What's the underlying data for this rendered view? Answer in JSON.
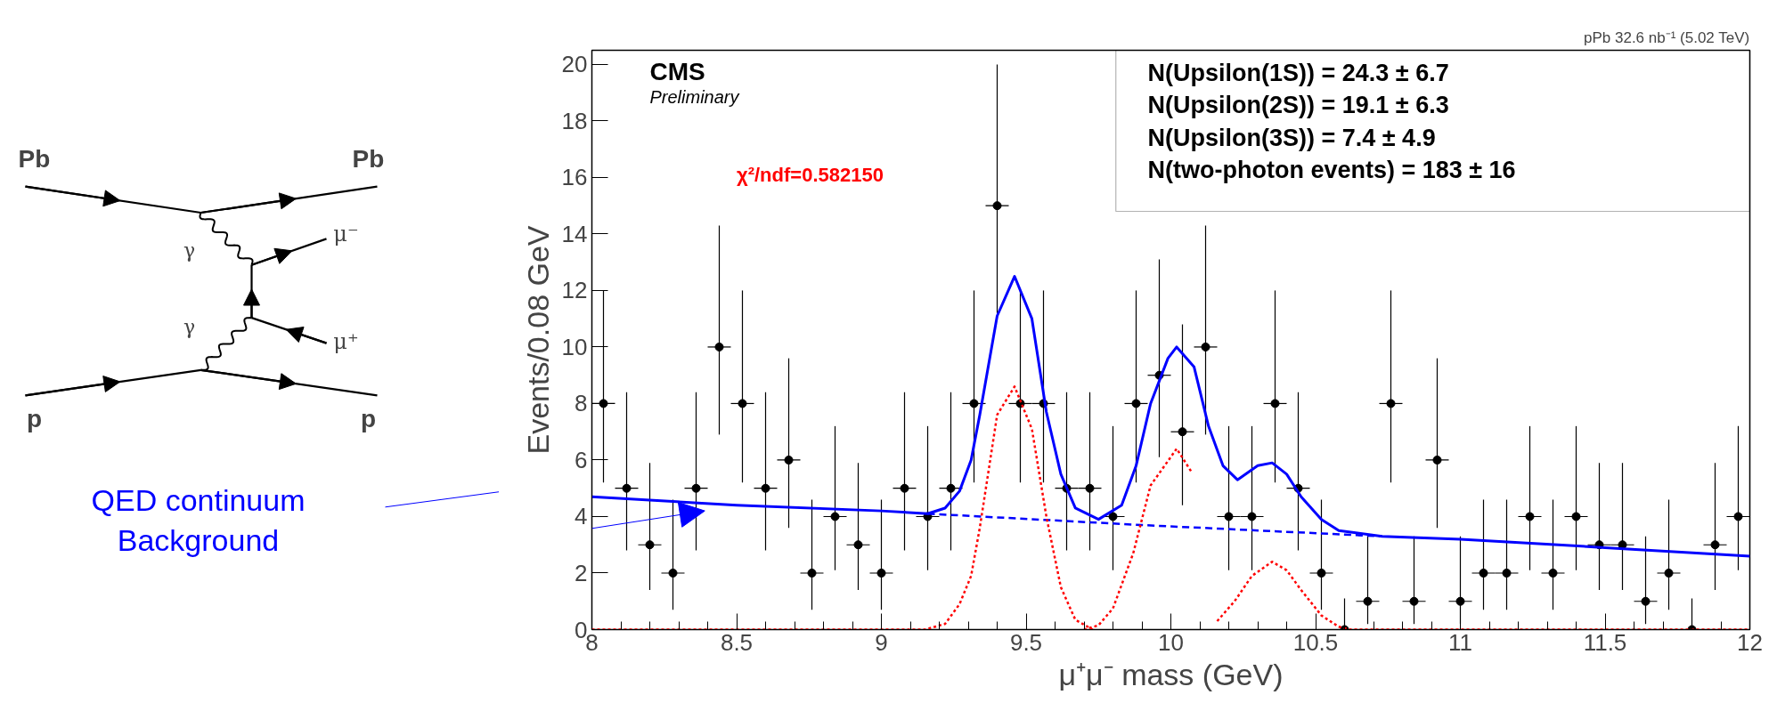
{
  "chart_data": [
    {
      "type": "scatter",
      "title": "pPb 32.6 nb⁻¹ (5.02 TeV)",
      "xlabel": "μ⁺μ⁻ mass (GeV)",
      "ylabel": "Events/0.08 GeV",
      "xlim": [
        8,
        12
      ],
      "ylim": [
        0,
        20.5
      ],
      "xticks": [
        8,
        8.5,
        9,
        9.5,
        10,
        10.5,
        11,
        11.5,
        12
      ],
      "yticks": [
        0,
        2,
        4,
        6,
        8,
        10,
        12,
        14,
        16,
        18,
        20
      ],
      "annotations": [
        "CMS",
        "Preliminary",
        "χ²/ndf=0.582150",
        "N(Upsilon(1S)) =  24.3 ± 6.7",
        "N(Upsilon(2S)) =  19.1 ± 6.3",
        "N(Upsilon(3S)) =  7.4 ± 4.9",
        "N(two-photon events) =  183 ± 16",
        "QED continuum\nBackground"
      ],
      "series": [
        {
          "type": "scatter",
          "color": "#000000",
          "marker": "circle",
          "x": [
            8.04,
            8.12,
            8.2,
            8.28,
            8.36,
            8.44,
            8.52,
            8.6,
            8.68,
            8.76,
            8.84,
            8.92,
            9.0,
            9.08,
            9.16,
            9.24,
            9.32,
            9.4,
            9.48,
            9.56,
            9.64,
            9.72,
            9.8,
            9.88,
            9.96,
            10.04,
            10.12,
            10.2,
            10.28,
            10.36,
            10.44,
            10.52,
            10.6,
            10.68,
            10.76,
            10.84,
            10.92,
            11.0,
            11.08,
            11.16,
            11.24,
            11.32,
            11.4,
            11.48,
            11.56,
            11.64,
            11.72,
            11.8,
            11.88,
            11.96
          ],
          "values": [
            8,
            5,
            3,
            2,
            5,
            10,
            8,
            5,
            6,
            2,
            4,
            3,
            2,
            5,
            4,
            5,
            8,
            15,
            8,
            8,
            5,
            5,
            4,
            8,
            9,
            7,
            10,
            4,
            4,
            8,
            5,
            2,
            0,
            1,
            8,
            1,
            6,
            1,
            2,
            2,
            4,
            2,
            4,
            3,
            3,
            1,
            2,
            0,
            3,
            4
          ],
          "errors": [
            [
              5.2,
              12.0
            ],
            [
              2.8,
              8.4
            ],
            [
              1.4,
              5.9
            ],
            [
              0.7,
              4.6
            ],
            [
              2.8,
              8.4
            ],
            [
              6.9,
              14.3
            ],
            [
              5.2,
              12.0
            ],
            [
              2.8,
              8.4
            ],
            [
              3.6,
              9.6
            ],
            [
              0.7,
              4.6
            ],
            [
              2.1,
              7.2
            ],
            [
              1.4,
              5.9
            ],
            [
              0.7,
              4.6
            ],
            [
              2.8,
              8.4
            ],
            [
              2.1,
              7.2
            ],
            [
              2.8,
              8.4
            ],
            [
              5.2,
              12.0
            ],
            [
              11.2,
              20.0
            ],
            [
              5.2,
              12.0
            ],
            [
              5.2,
              12.0
            ],
            [
              2.8,
              8.4
            ],
            [
              2.8,
              8.4
            ],
            [
              2.1,
              7.2
            ],
            [
              5.2,
              12.0
            ],
            [
              6.1,
              13.1
            ],
            [
              4.4,
              10.8
            ],
            [
              6.9,
              14.3
            ],
            [
              2.1,
              7.2
            ],
            [
              2.1,
              7.2
            ],
            [
              5.2,
              12.0
            ],
            [
              2.8,
              8.4
            ],
            [
              0.7,
              4.6
            ],
            [
              0,
              1.1
            ],
            [
              0.2,
              3.3
            ],
            [
              5.2,
              12.0
            ],
            [
              0.2,
              3.3
            ],
            [
              3.6,
              9.6
            ],
            [
              0.2,
              3.3
            ],
            [
              0.7,
              4.6
            ],
            [
              0.7,
              4.6
            ],
            [
              2.1,
              7.2
            ],
            [
              0.7,
              4.6
            ],
            [
              2.1,
              7.2
            ],
            [
              1.4,
              5.9
            ],
            [
              1.4,
              5.9
            ],
            [
              0.2,
              3.3
            ],
            [
              0.7,
              4.6
            ],
            [
              0,
              1.1
            ],
            [
              1.4,
              5.9
            ],
            [
              2.1,
              7.2
            ]
          ],
          "xerrors": [
            0.04,
            0.04,
            0.04,
            0.04,
            0.04,
            0.04,
            0.04,
            0.04,
            0.04,
            0.04,
            0.04,
            0.04,
            0.04,
            0.04,
            0.04,
            0.04,
            0.04,
            0.04,
            0.04,
            0.04,
            0.04,
            0.04,
            0.04,
            0.04,
            0.04,
            0.04,
            0.04,
            0.04,
            0.04,
            0.04,
            0.04,
            0.04,
            0.04,
            0.04,
            0.04,
            0.04,
            0.04,
            0.04,
            0.04,
            0.04,
            0.04,
            0.04,
            0.04,
            0.04,
            0.04,
            0.04,
            0.04,
            0.04,
            0.04,
            0.04
          ]
        },
        {
          "type": "line",
          "color": "#0000ff",
          "line_style": "solid",
          "x": [
            8.0,
            8.5,
            9.0,
            9.16,
            9.22,
            9.27,
            9.31,
            9.34,
            9.4,
            9.46,
            9.52,
            9.57,
            9.62,
            9.67,
            9.75,
            9.83,
            9.88,
            9.93,
            9.99,
            10.02,
            10.08,
            10.13,
            10.18,
            10.23,
            10.3,
            10.35,
            10.4,
            10.45,
            10.52,
            10.58,
            10.73,
            11.0,
            11.5,
            12.0
          ],
          "values": [
            4.7,
            4.4,
            4.2,
            4.1,
            4.3,
            4.9,
            6.0,
            7.6,
            11.1,
            12.5,
            11.0,
            7.7,
            5.5,
            4.3,
            3.9,
            4.4,
            5.8,
            8.0,
            9.6,
            10.0,
            9.3,
            7.2,
            5.8,
            5.3,
            5.8,
            5.9,
            5.5,
            4.7,
            3.9,
            3.5,
            3.3,
            3.2,
            2.9,
            2.6
          ]
        },
        {
          "type": "line",
          "color": "#0000ff",
          "line_style": "dashed",
          "x": [
            9.16,
            9.9,
            10.73
          ],
          "values": [
            4.1,
            3.7,
            3.3
          ]
        },
        {
          "type": "line",
          "color": "#ff0000",
          "line_style": "dotted",
          "x": [
            8.0,
            9.15,
            9.22,
            9.27,
            9.31,
            9.34,
            9.4,
            9.46,
            9.52,
            9.57,
            9.62,
            9.67,
            9.73
          ],
          "values": [
            0,
            0,
            0.2,
            0.9,
            1.9,
            3.6,
            7.6,
            8.6,
            7.1,
            4.0,
            1.5,
            0.35,
            0
          ]
        },
        {
          "type": "line",
          "color": "#ff0000",
          "line_style": "dotted",
          "x": [
            9.7,
            9.75,
            9.8,
            9.87,
            9.93,
            10.02,
            10.07
          ],
          "values": [
            0,
            0.15,
            0.75,
            2.7,
            5.1,
            6.4,
            5.6
          ]
        },
        {
          "type": "line",
          "color": "#ff0000",
          "line_style": "dotted",
          "x": [
            10.16,
            10.22,
            10.28,
            10.35,
            10.4,
            10.45,
            10.52,
            10.58,
            10.62,
            12.0
          ],
          "values": [
            0.3,
            1.0,
            1.9,
            2.4,
            2.1,
            1.4,
            0.5,
            0.1,
            0,
            0
          ]
        }
      ]
    },
    {
      "type": "other",
      "annotations": [
        "Pb",
        "Pb",
        "γ",
        "γ",
        "μ⁻",
        "μ⁺",
        "p",
        "p"
      ]
    }
  ]
}
